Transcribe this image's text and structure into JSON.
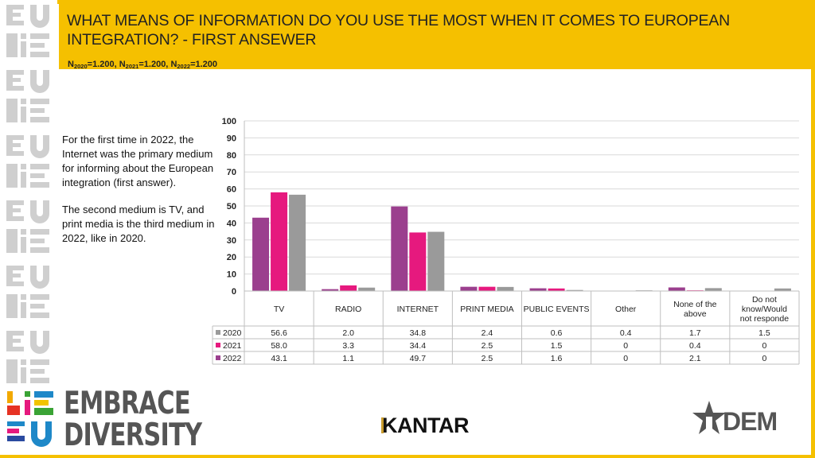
{
  "header": {
    "title": "WHAT MEANS OF INFORMATION DO YOU USE THE MOST WHEN IT COMES TO EUROPEAN INTEGRATION? - FIRST ANSEWER",
    "n_label": "N",
    "sample": [
      {
        "year": "2020",
        "value": "=1.200, "
      },
      {
        "year": "2021",
        "value": "=1.200, "
      },
      {
        "year": "2022",
        "value": "=1.200"
      }
    ]
  },
  "side_text": {
    "paragraph_1": "For the first time in 2022, the Internet was the primary medium for informing about the European integration (first answer).",
    "paragraph_2": "The second medium is TV, and print media is the third medium in 2022, like in 2020."
  },
  "chart_data": {
    "type": "bar",
    "categories": [
      "TV",
      "RADIO",
      "INTERNET",
      "PRINT MEDIA",
      "PUBLIC EVENTS",
      "Other",
      "None of the above",
      "Do not know/Would not responde"
    ],
    "series": [
      {
        "name": "2022",
        "color": "#9b3f8e",
        "values": [
          43.1,
          1.1,
          49.7,
          2.5,
          1.6,
          0,
          2.1,
          0
        ]
      },
      {
        "name": "2021",
        "color": "#e6197e",
        "values": [
          58.0,
          3.3,
          34.4,
          2.5,
          1.5,
          0,
          0.4,
          0
        ]
      },
      {
        "name": "2020",
        "color": "#9a9a9a",
        "values": [
          56.6,
          2.0,
          34.8,
          2.4,
          0.6,
          0.4,
          1.7,
          1.5
        ]
      }
    ],
    "table_rows": [
      {
        "name": "2020",
        "color": "#9a9a9a",
        "values": [
          "56.6",
          "2.0",
          "34.8",
          "2.4",
          "0.6",
          "0.4",
          "1.7",
          "1.5"
        ]
      },
      {
        "name": "2021",
        "color": "#e6197e",
        "values": [
          "58.0",
          "3.3",
          "34.4",
          "2.5",
          "1.5",
          "0",
          "0.4",
          "0"
        ]
      },
      {
        "name": "2022",
        "color": "#9b3f8e",
        "values": [
          "43.1",
          "1.1",
          "49.7",
          "2.5",
          "1.6",
          "0",
          "2.1",
          "0"
        ]
      }
    ],
    "ylim": [
      0,
      100
    ],
    "yticks": [
      "0",
      "10",
      "20",
      "30",
      "40",
      "50",
      "60",
      "70",
      "80",
      "90",
      "100"
    ],
    "grid": true,
    "legend": "data table below chart"
  },
  "footer": {
    "brand_line1": "EMBRACE",
    "brand_line2": "DIVERSITY",
    "kantar": "KANTAR",
    "dem_logo": "DEM"
  },
  "colors": {
    "accent": "#f5c000",
    "logo_grey": "#555555"
  }
}
